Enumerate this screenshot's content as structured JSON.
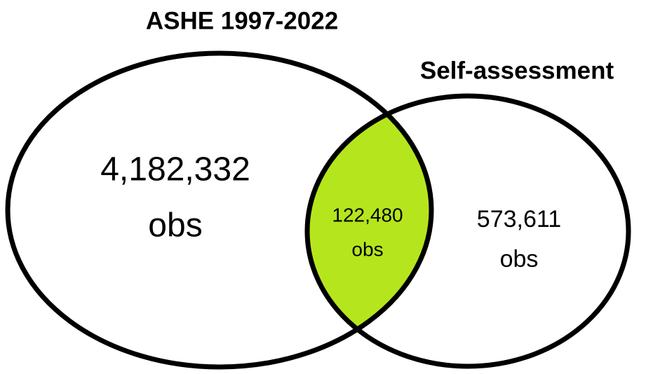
{
  "sets": [
    {
      "label": "ASHE 1997-2022"
    },
    {
      "label": "Self-assessment"
    }
  ],
  "regions": [
    {
      "count": "4,182,332",
      "unit": "obs"
    },
    {
      "count": "122,480",
      "unit": "obs"
    },
    {
      "count": "573,611",
      "unit": "obs"
    }
  ]
}
